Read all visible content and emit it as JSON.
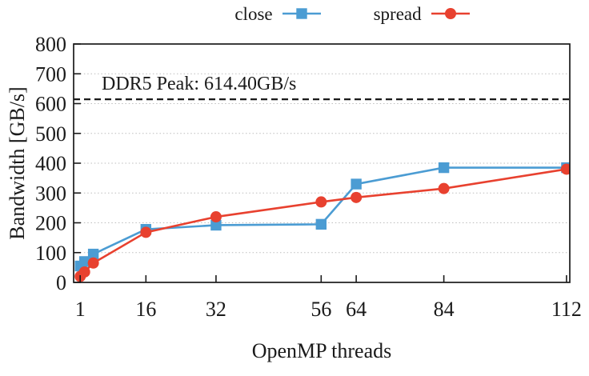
{
  "chart_data": {
    "type": "line",
    "title": "",
    "xlabel": "OpenMP threads",
    "ylabel": "Bandwidth [GB/s]",
    "xlim": [
      -0.5,
      112.75
    ],
    "ylim": [
      0,
      800
    ],
    "xticks": [
      1,
      16,
      32,
      56,
      64,
      84,
      112
    ],
    "yticks": [
      0,
      100,
      200,
      300,
      400,
      500,
      600,
      700,
      800
    ],
    "grid": {
      "horizontal": true,
      "vertical": false,
      "style": "dotted",
      "color": "#bdbdbd"
    },
    "legend_position": "top-center",
    "frame_color": "#1a1a1a",
    "series": [
      {
        "name": "close",
        "label": "close",
        "color": "#4B9CD3",
        "marker": "square",
        "x": [
          1,
          2,
          4,
          16,
          32,
          56,
          64,
          84,
          112
        ],
        "y": [
          55,
          70,
          95,
          178,
          192,
          195,
          330,
          385,
          385
        ]
      },
      {
        "name": "spread",
        "label": "spread",
        "color": "#E8412F",
        "marker": "circle",
        "x": [
          1,
          2,
          4,
          16,
          32,
          56,
          64,
          84,
          112
        ],
        "y": [
          20,
          35,
          65,
          168,
          220,
          270,
          285,
          315,
          380
        ]
      }
    ],
    "annotation": {
      "label": "DDR5 Peak: 614.40GB/s",
      "value": 614.4,
      "line_style": "dashed",
      "line_color": "#1a1a1a"
    }
  }
}
